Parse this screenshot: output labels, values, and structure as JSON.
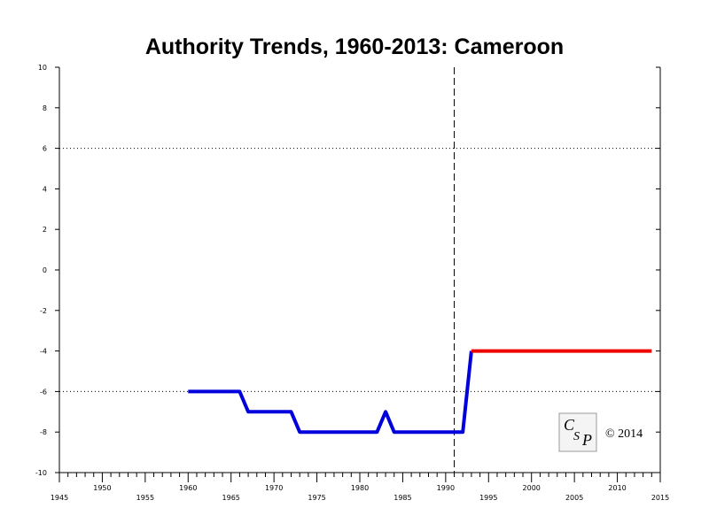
{
  "chart_data": {
    "type": "line",
    "title": "Authority Trends, 1960-2013: Cameroon",
    "xlabel": "",
    "ylabel": "",
    "xlim": [
      1945,
      2015
    ],
    "ylim": [
      -10,
      10
    ],
    "x_ticks_major": [
      1945,
      1950,
      1955,
      1960,
      1965,
      1970,
      1975,
      1980,
      1985,
      1990,
      1995,
      2000,
      2005,
      2010,
      2015
    ],
    "x_tick_labels_low": [
      "1945",
      "1955",
      "1965",
      "1975",
      "1985",
      "1995",
      "2005",
      "2015"
    ],
    "x_tick_labels_high": [
      "1950",
      "1960",
      "1970",
      "1980",
      "1990",
      "2000",
      "2010"
    ],
    "y_ticks": [
      10,
      8,
      6,
      4,
      2,
      0,
      -2,
      -4,
      -6,
      -8,
      -10
    ],
    "y_tick_labels": [
      "10",
      "8",
      "6",
      "4",
      "2",
      "0",
      "-2",
      "-4",
      "-6",
      "-8",
      "-10"
    ],
    "reference_lines_y": [
      6,
      -6
    ],
    "reference_line_x": 1991,
    "series": [
      {
        "color": "#0000dd",
        "points": [
          [
            1960,
            -6
          ],
          [
            1966,
            -6
          ],
          [
            1967,
            -7
          ],
          [
            1972,
            -7
          ],
          [
            1973,
            -8
          ],
          [
            1982,
            -8
          ],
          [
            1983,
            -7
          ],
          [
            1984,
            -8
          ],
          [
            1991,
            -8
          ],
          [
            1992,
            -8
          ],
          [
            1993,
            -4
          ]
        ]
      },
      {
        "color": "#ee0000",
        "points": [
          [
            1993,
            -4
          ],
          [
            2014,
            -4
          ]
        ]
      }
    ],
    "grid": false,
    "legend": "none"
  },
  "logo": {
    "text": "CSP"
  },
  "copyright": "© 2014"
}
